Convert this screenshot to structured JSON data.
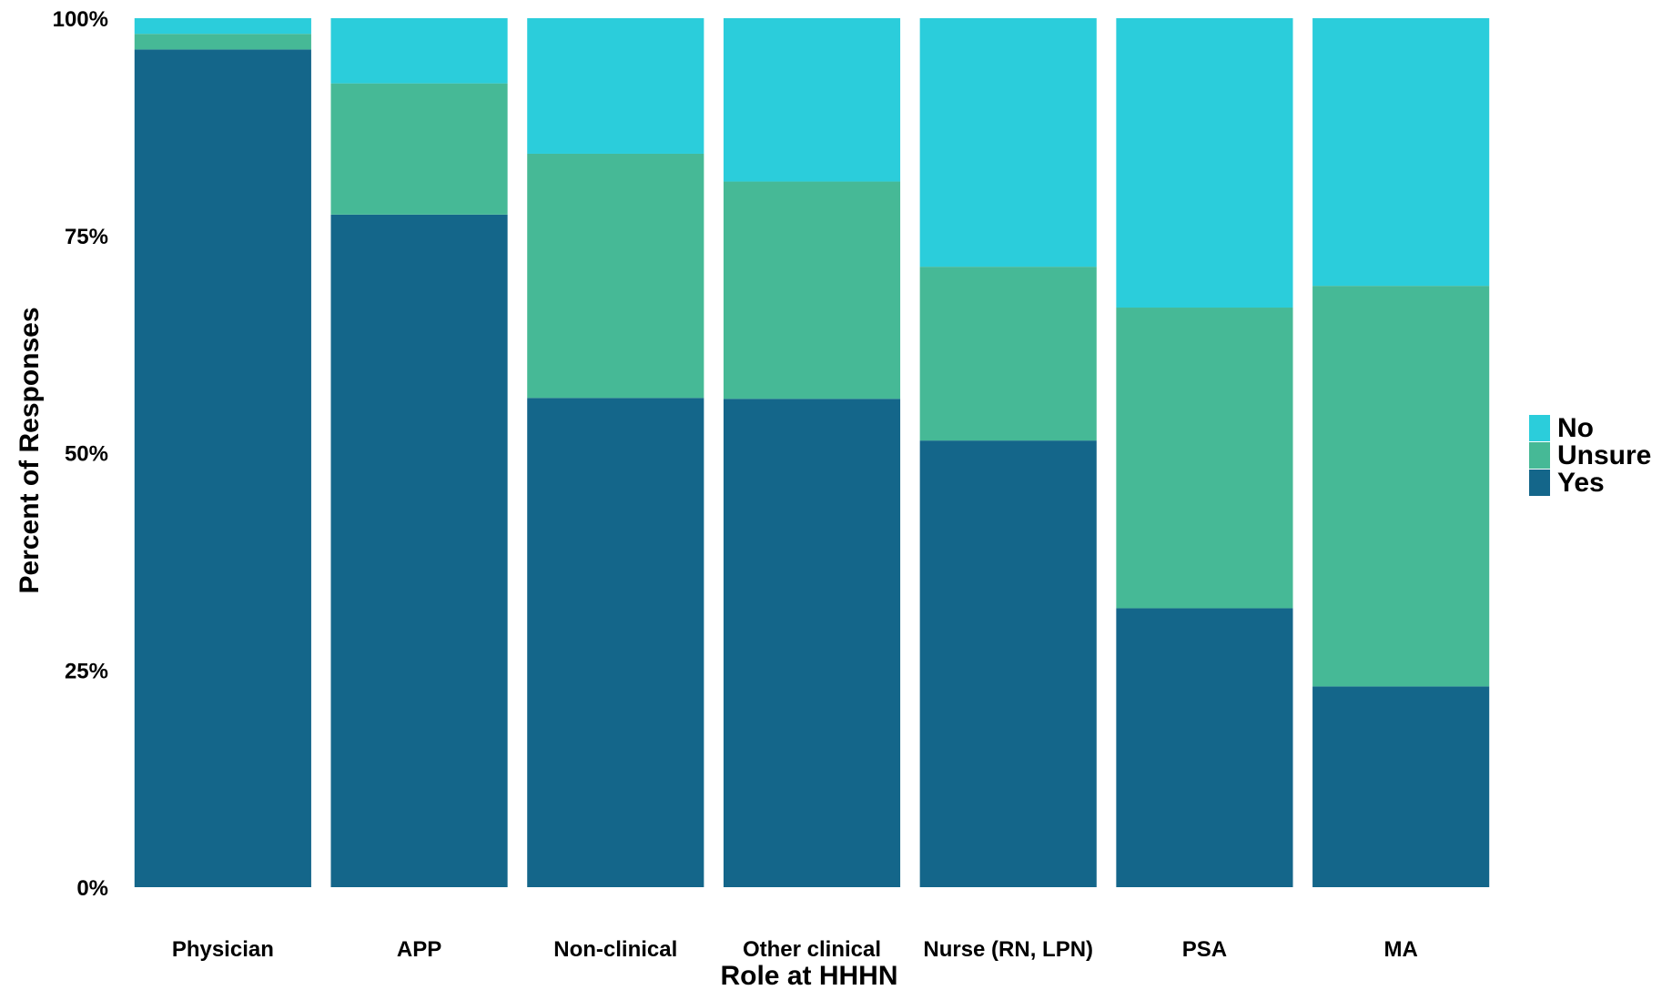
{
  "chart_data": {
    "type": "bar",
    "stacked": true,
    "percent": true,
    "categories": [
      "Physician",
      "APP",
      "Non-clinical",
      "Other clinical",
      "Nurse (RN, LPN)",
      "PSA",
      "MA"
    ],
    "series": [
      {
        "name": "Yes",
        "color": "#14668a",
        "values": [
          96.4,
          77.4,
          56.3,
          56.2,
          51.4,
          32.1,
          23.1
        ]
      },
      {
        "name": "Unsure",
        "color": "#46b996",
        "values": [
          1.8,
          15.1,
          28.1,
          25.0,
          20.0,
          34.6,
          46.1
        ]
      },
      {
        "name": "No",
        "color": "#2bcddb",
        "values": [
          1.8,
          7.5,
          15.6,
          18.8,
          28.6,
          33.3,
          30.8
        ]
      }
    ],
    "legend_order": [
      "No",
      "Unsure",
      "Yes"
    ],
    "xlabel": "Role at HHHN",
    "ylabel": "Percent of Responses",
    "ylim": [
      0,
      100
    ],
    "yticks": [
      0,
      25,
      50,
      75,
      100
    ],
    "ytick_labels": [
      "0%",
      "25%",
      "50%",
      "75%",
      "100%"
    ],
    "grid": false,
    "legend_position": "right"
  }
}
